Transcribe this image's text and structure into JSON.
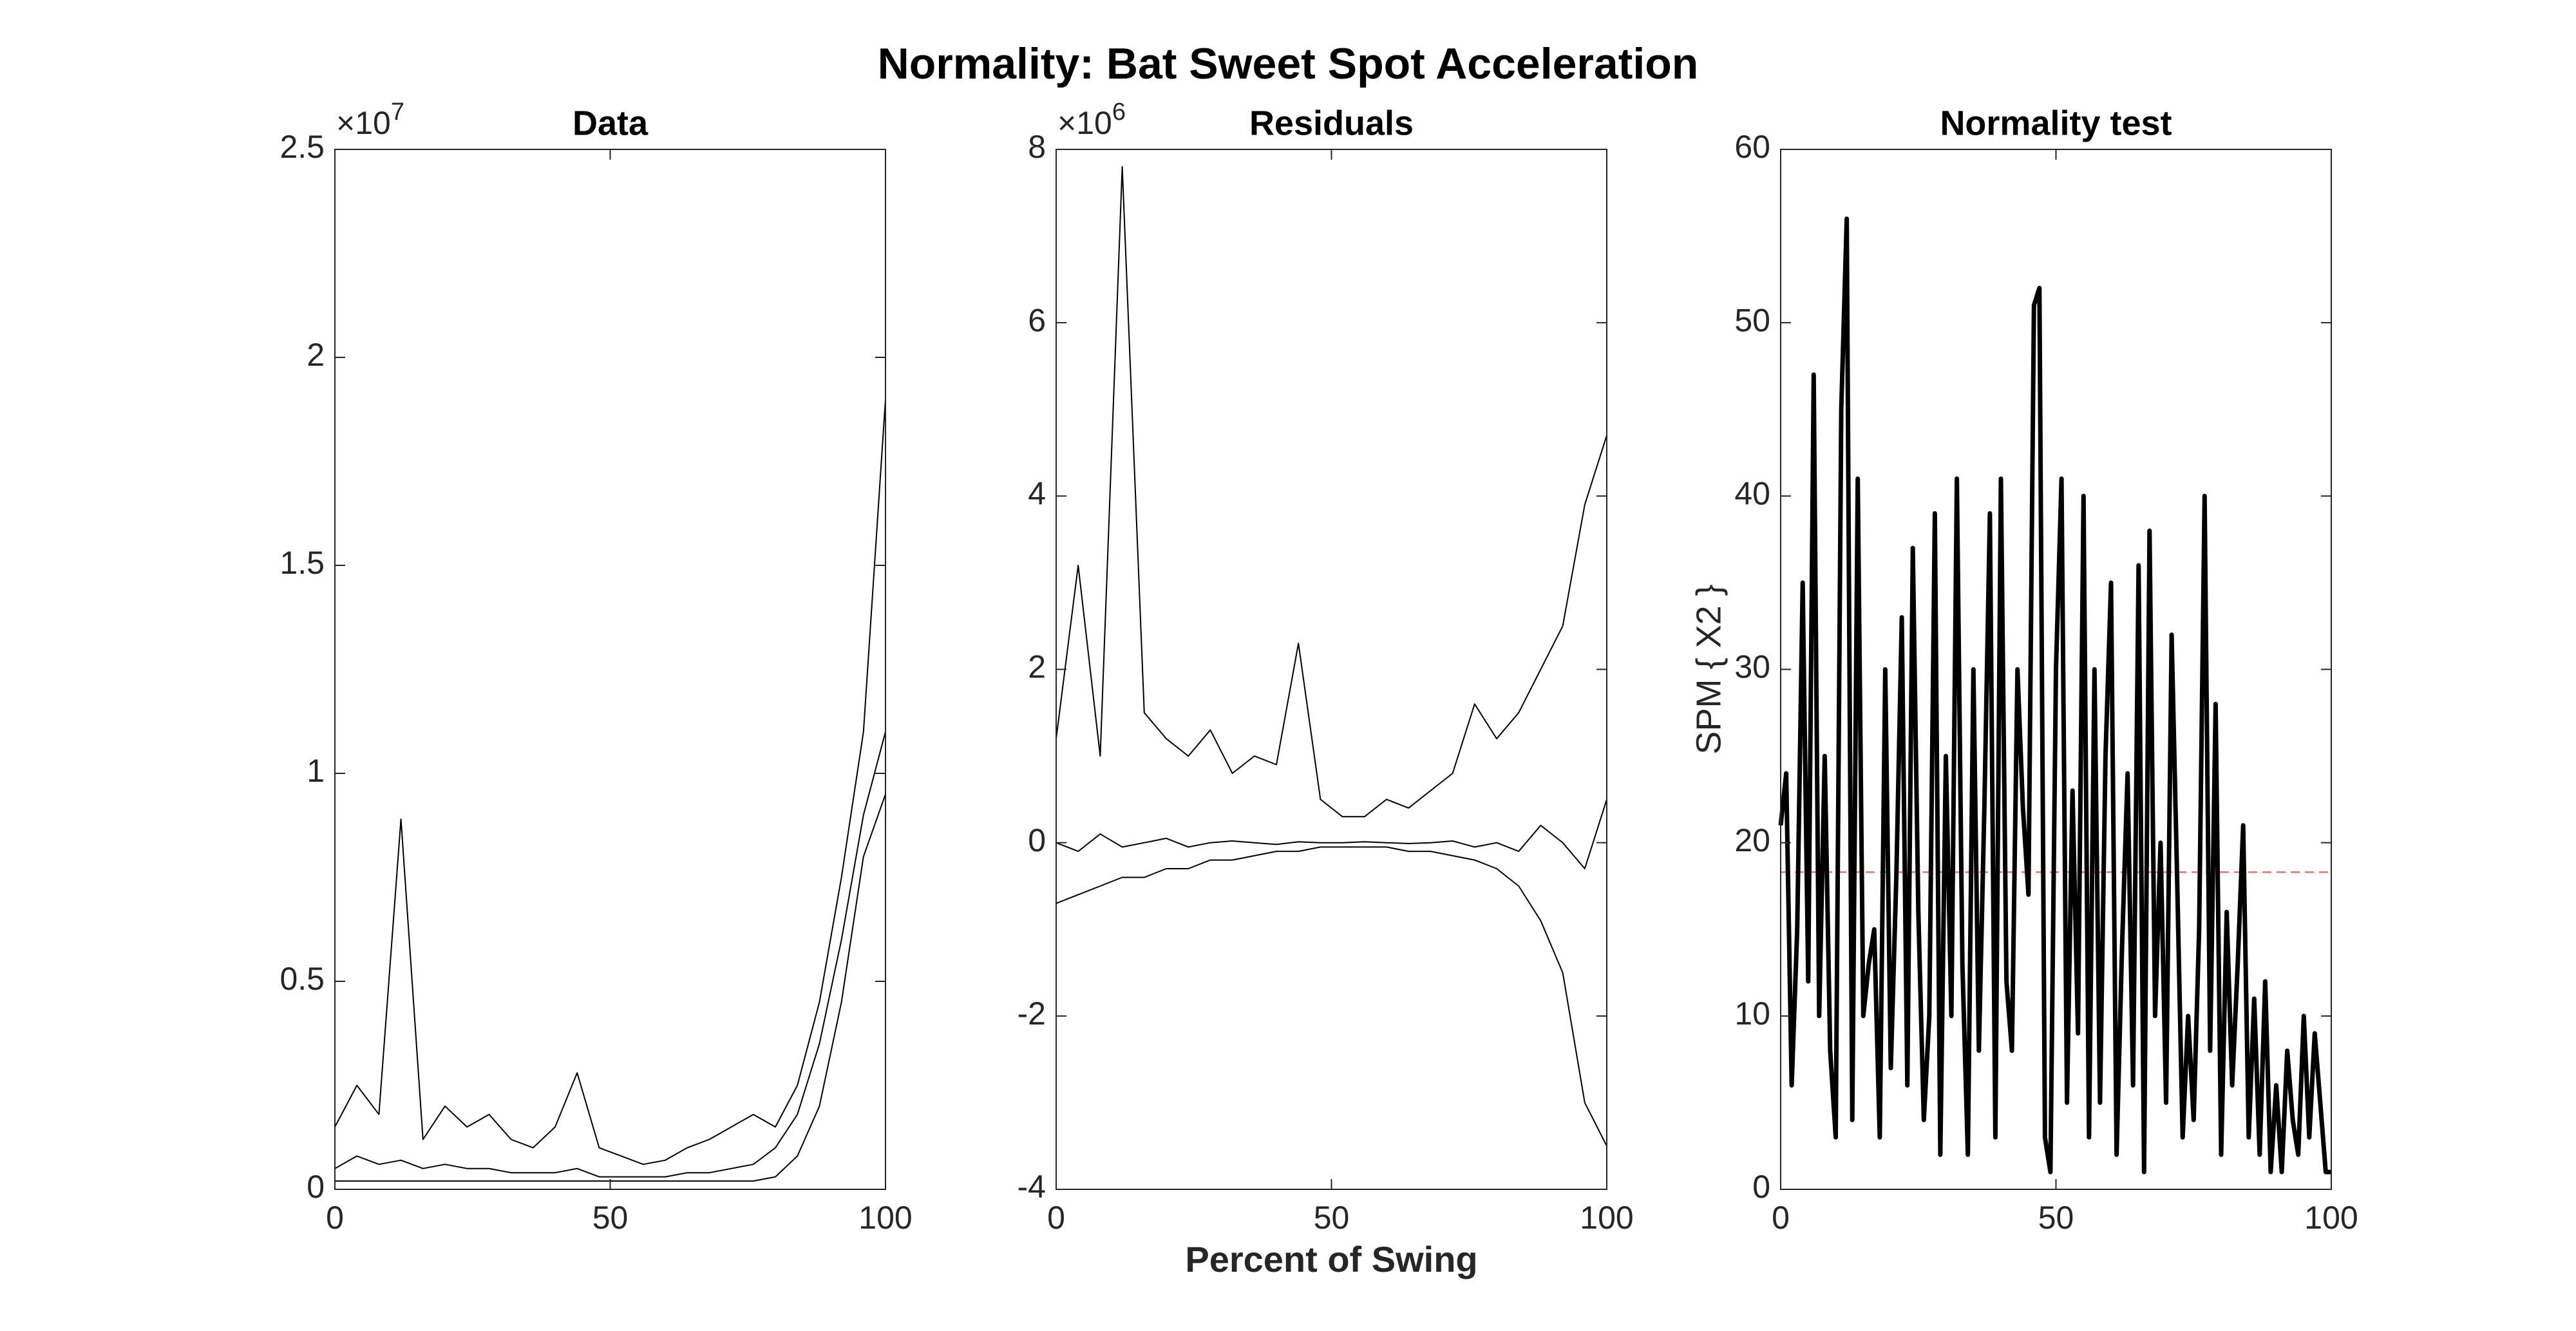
{
  "title": "Normality: Bat Sweet Spot Acceleration",
  "chart_data": [
    {
      "type": "line",
      "title": "Data",
      "y_multiplier": {
        "base": "×10",
        "exponent": "7"
      },
      "x": [
        0,
        4,
        8,
        12,
        16,
        20,
        24,
        28,
        32,
        36,
        40,
        44,
        48,
        52,
        56,
        60,
        64,
        68,
        72,
        76,
        80,
        84,
        88,
        92,
        96,
        100
      ],
      "series": [
        {
          "color": "#000000",
          "line_width": 2,
          "values": [
            0.15,
            0.25,
            0.18,
            0.89,
            0.12,
            0.2,
            0.15,
            0.18,
            0.12,
            0.1,
            0.15,
            0.28,
            0.1,
            0.08,
            0.06,
            0.07,
            0.1,
            0.12,
            0.15,
            0.18,
            0.15,
            0.25,
            0.45,
            0.75,
            1.1,
            1.9
          ]
        },
        {
          "color": "#000000",
          "line_width": 2,
          "values": [
            0.05,
            0.08,
            0.06,
            0.07,
            0.05,
            0.06,
            0.05,
            0.05,
            0.04,
            0.04,
            0.04,
            0.05,
            0.03,
            0.03,
            0.03,
            0.03,
            0.04,
            0.04,
            0.05,
            0.06,
            0.1,
            0.18,
            0.35,
            0.6,
            0.9,
            1.1
          ]
        },
        {
          "color": "#000000",
          "line_width": 2,
          "values": [
            0.02,
            0.02,
            0.02,
            0.02,
            0.02,
            0.02,
            0.02,
            0.02,
            0.02,
            0.02,
            0.02,
            0.02,
            0.02,
            0.02,
            0.02,
            0.02,
            0.02,
            0.02,
            0.02,
            0.02,
            0.03,
            0.08,
            0.2,
            0.45,
            0.8,
            0.95
          ]
        }
      ],
      "xlim": [
        0,
        100
      ],
      "xticks": [
        0,
        50,
        100
      ],
      "ylim": [
        0,
        2.5
      ],
      "yticks": [
        0,
        0.5,
        1,
        1.5,
        2,
        2.5
      ]
    },
    {
      "type": "line",
      "title": "Residuals",
      "xlabel": "Percent of Swing",
      "y_multiplier": {
        "base": "×10",
        "exponent": "6"
      },
      "x": [
        0,
        4,
        8,
        12,
        16,
        20,
        24,
        28,
        32,
        36,
        40,
        44,
        48,
        52,
        56,
        60,
        64,
        68,
        72,
        76,
        80,
        84,
        88,
        92,
        96,
        100
      ],
      "series": [
        {
          "color": "#000000",
          "line_width": 2,
          "values": [
            1.2,
            3.2,
            1.0,
            7.8,
            1.5,
            1.2,
            1.0,
            1.3,
            0.8,
            1.0,
            0.9,
            2.3,
            0.5,
            0.3,
            0.3,
            0.5,
            0.4,
            0.6,
            0.8,
            1.6,
            1.2,
            1.5,
            2.0,
            2.5,
            3.9,
            4.7
          ]
        },
        {
          "color": "#000000",
          "line_width": 2,
          "values": [
            0,
            -0.1,
            0.1,
            -0.05,
            0,
            0.05,
            -0.05,
            0,
            0.02,
            0,
            -0.02,
            0.01,
            0,
            0,
            0.01,
            0,
            -0.01,
            0,
            0.02,
            -0.05,
            0,
            -0.1,
            0.2,
            0,
            -0.3,
            0.5
          ]
        },
        {
          "color": "#000000",
          "line_width": 2,
          "values": [
            -0.7,
            -0.6,
            -0.5,
            -0.4,
            -0.4,
            -0.3,
            -0.3,
            -0.2,
            -0.2,
            -0.15,
            -0.1,
            -0.1,
            -0.05,
            -0.05,
            -0.05,
            -0.05,
            -0.1,
            -0.1,
            -0.15,
            -0.2,
            -0.3,
            -0.5,
            -0.9,
            -1.5,
            -3.0,
            -3.5
          ]
        }
      ],
      "xlim": [
        0,
        100
      ],
      "xticks": [
        0,
        50,
        100
      ],
      "ylim": [
        -4,
        8
      ],
      "yticks": [
        -4,
        -2,
        0,
        2,
        4,
        6,
        8
      ]
    },
    {
      "type": "line",
      "title": "Normality test",
      "ylabel": "SPM { X2 }",
      "x": [
        0,
        1,
        2,
        3,
        4,
        5,
        6,
        7,
        8,
        9,
        10,
        11,
        12,
        13,
        14,
        15,
        16,
        17,
        18,
        19,
        20,
        21,
        22,
        23,
        24,
        25,
        26,
        27,
        28,
        29,
        30,
        31,
        32,
        33,
        34,
        35,
        36,
        37,
        38,
        39,
        40,
        41,
        42,
        43,
        44,
        45,
        46,
        47,
        48,
        49,
        50,
        51,
        52,
        53,
        54,
        55,
        56,
        57,
        58,
        59,
        60,
        61,
        62,
        63,
        64,
        65,
        66,
        67,
        68,
        69,
        70,
        71,
        72,
        73,
        74,
        75,
        76,
        77,
        78,
        79,
        80,
        81,
        82,
        83,
        84,
        85,
        86,
        87,
        88,
        89,
        90,
        91,
        92,
        93,
        94,
        95,
        96,
        97,
        98,
        99,
        100
      ],
      "series": [
        {
          "color": "#000000",
          "line_width": 7,
          "values": [
            21,
            24,
            6,
            15,
            35,
            12,
            47,
            10,
            25,
            8,
            3,
            45,
            56,
            4,
            41,
            10,
            13,
            15,
            3,
            30,
            7,
            18,
            33,
            6,
            37,
            16,
            4,
            10,
            39,
            2,
            25,
            10,
            41,
            13,
            2,
            30,
            8,
            22,
            39,
            3,
            41,
            12,
            8,
            30,
            22,
            17,
            51,
            52,
            3,
            1,
            30,
            41,
            5,
            23,
            9,
            40,
            3,
            30,
            5,
            25,
            35,
            2,
            14,
            24,
            6,
            36,
            1,
            38,
            10,
            20,
            5,
            32,
            18,
            3,
            10,
            4,
            15,
            40,
            8,
            28,
            2,
            16,
            6,
            13,
            21,
            3,
            11,
            2,
            12,
            1,
            6,
            1,
            8,
            4,
            2,
            10,
            3,
            9,
            5,
            1,
            1
          ]
        }
      ],
      "threshold": 18.3,
      "threshold_color": "#ff6b6b",
      "xlim": [
        0,
        100
      ],
      "xticks": [
        0,
        50,
        100
      ],
      "ylim": [
        0,
        60
      ],
      "yticks": [
        0,
        10,
        20,
        30,
        40,
        50,
        60
      ]
    }
  ]
}
